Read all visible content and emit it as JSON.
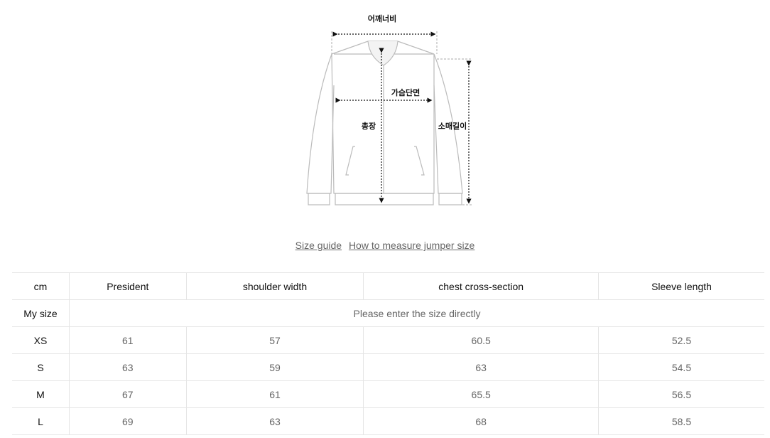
{
  "diagram": {
    "labels": {
      "shoulder": "어깨너비",
      "chest": "가슴단면",
      "length": "총장",
      "sleeve": "소매길이"
    }
  },
  "links": [
    {
      "label": "Size guide"
    },
    {
      "label": "How to measure jumper size"
    }
  ],
  "table": {
    "headers": [
      "cm",
      "President",
      "shoulder width",
      "chest cross-section",
      "Sleeve length"
    ],
    "my_size": {
      "label": "My size",
      "placeholder": "Please enter the size directly"
    },
    "rows": [
      {
        "size": "XS",
        "values": [
          "61",
          "57",
          "60.5",
          "52.5"
        ]
      },
      {
        "size": "S",
        "values": [
          "63",
          "59",
          "63",
          "54.5"
        ]
      },
      {
        "size": "M",
        "values": [
          "67",
          "61",
          "65.5",
          "56.5"
        ]
      },
      {
        "size": "L",
        "values": [
          "69",
          "63",
          "68",
          "58.5"
        ]
      }
    ]
  }
}
